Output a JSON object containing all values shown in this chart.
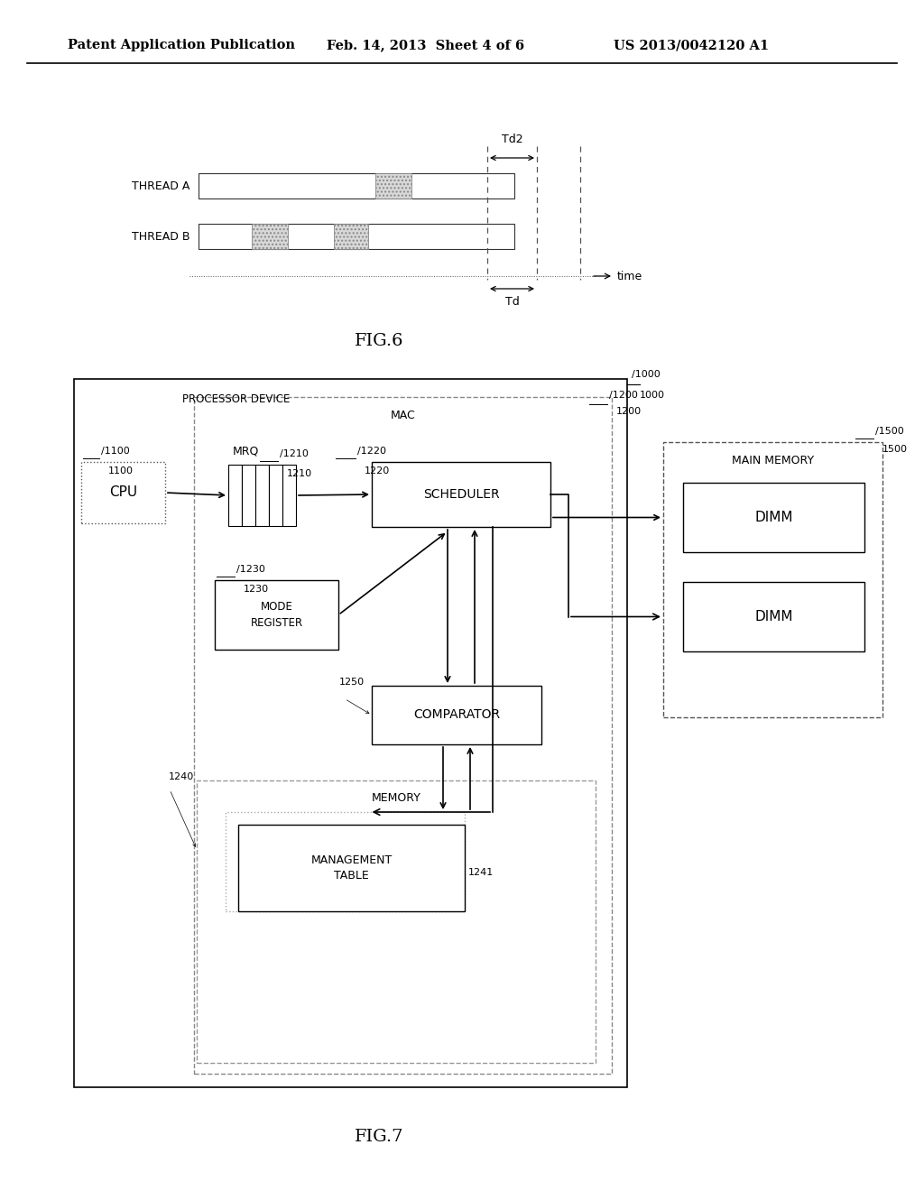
{
  "bg_color": "#ffffff",
  "header_left": "Patent Application Publication",
  "header_mid": "Feb. 14, 2013  Sheet 4 of 6",
  "header_right": "US 2013/0042120 A1",
  "fig6_label": "FIG.6",
  "fig7_label": "FIG.7",
  "thread_a_label": "THREAD A",
  "thread_b_label": "THREAD B",
  "time_label": "time",
  "td_label": "Td",
  "td2_label": "Td2",
  "fig7_outer_label": "PROCESSOR DEVICE",
  "fig7_mac_label": "MAC",
  "fig7_mrq_label": "MRQ",
  "fig7_cpu_label": "CPU",
  "fig7_sched_label": "SCHEDULER",
  "fig7_modereg_label": "MODE\nREGISTER",
  "fig7_comp_label": "COMPARATOR",
  "fig7_mem_label": "MEMORY",
  "fig7_mgmt_label": "MANAGEMENT\nTABLE",
  "fig7_mainmem_label": "MAIN MEMORY",
  "fig7_dimm1_label": "DIMM",
  "fig7_dimm2_label": "DIMM",
  "ref_1000": "1000",
  "ref_1100": "1100",
  "ref_1200": "1200",
  "ref_1210": "1210",
  "ref_1220": "1220",
  "ref_1230": "1230",
  "ref_1240": "1240",
  "ref_1241": "1241",
  "ref_1250": "1250",
  "ref_1500": "1500"
}
